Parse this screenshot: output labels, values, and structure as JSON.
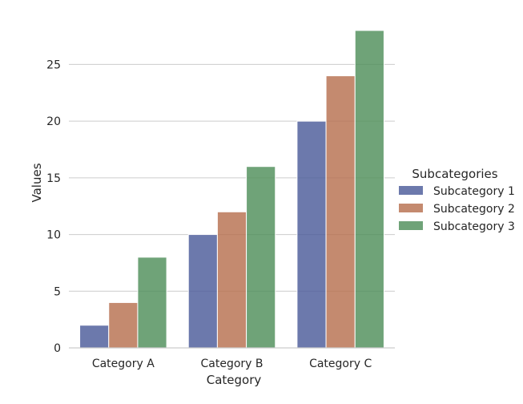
{
  "chart_data": {
    "type": "bar",
    "title": "",
    "xlabel": "Category",
    "ylabel": "Values",
    "categories": [
      "Category A",
      "Category B",
      "Category C"
    ],
    "series": [
      {
        "name": "Subcategory 1",
        "values": [
          2,
          10,
          20
        ],
        "color": "#4c5b9a"
      },
      {
        "name": "Subcategory 2",
        "values": [
          4,
          12,
          24
        ],
        "color": "#b7704f"
      },
      {
        "name": "Subcategory 3",
        "values": [
          8,
          16,
          28
        ],
        "color": "#4f8f5a"
      }
    ],
    "ylim": [
      0,
      28
    ],
    "yticks": [
      0,
      5,
      10,
      15,
      20,
      25
    ],
    "grid": "horizontal",
    "legend": {
      "title": "Subcategories",
      "placement": "right"
    }
  }
}
